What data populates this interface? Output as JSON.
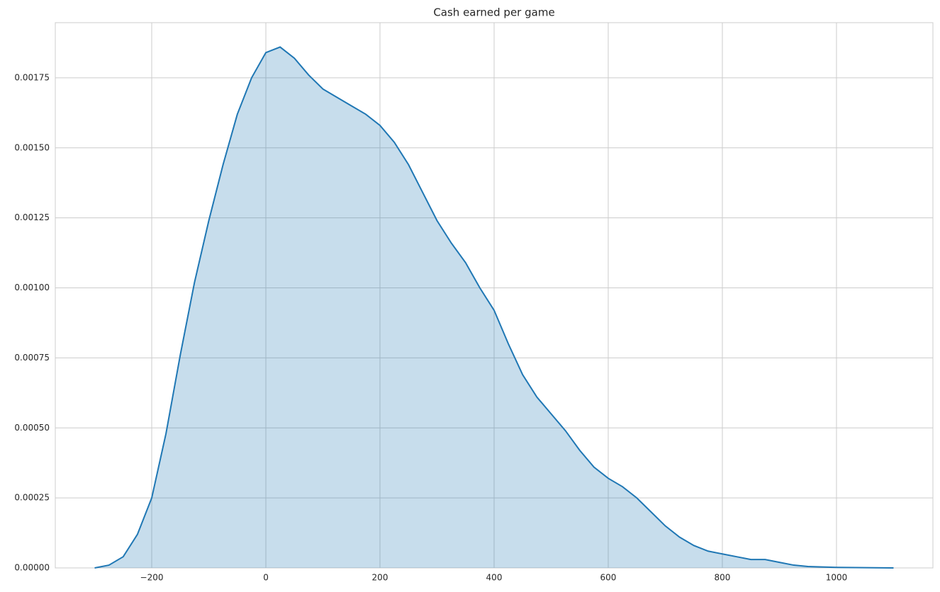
{
  "chart_data": {
    "type": "area",
    "title": "Cash earned per game",
    "x": [
      -300,
      -275,
      -250,
      -225,
      -200,
      -175,
      -150,
      -125,
      -100,
      -75,
      -50,
      -25,
      0,
      25,
      50,
      75,
      100,
      125,
      150,
      175,
      200,
      225,
      250,
      275,
      300,
      325,
      350,
      375,
      400,
      425,
      450,
      475,
      500,
      525,
      550,
      575,
      600,
      625,
      650,
      675,
      700,
      725,
      750,
      775,
      800,
      825,
      850,
      875,
      900,
      925,
      950,
      1000,
      1050,
      1100
    ],
    "series": [
      {
        "color": "#1f77b4",
        "values": [
          0,
          1e-05,
          4e-05,
          0.00012,
          0.00025,
          0.00048,
          0.00076,
          0.00102,
          0.00124,
          0.00144,
          0.00162,
          0.00175,
          0.00184,
          0.00186,
          0.00182,
          0.00176,
          0.00171,
          0.00168,
          0.00165,
          0.00162,
          0.00158,
          0.00152,
          0.00144,
          0.00134,
          0.00124,
          0.00116,
          0.00109,
          0.001,
          0.00092,
          0.0008,
          0.00069,
          0.00061,
          0.00055,
          0.00049,
          0.00042,
          0.00036,
          0.00032,
          0.00029,
          0.00025,
          0.0002,
          0.00015,
          0.00011,
          8e-05,
          6e-05,
          5e-05,
          4e-05,
          3e-05,
          3e-05,
          2e-05,
          1e-05,
          5e-06,
          2e-06,
          1e-06,
          0
        ]
      }
    ],
    "xlim": [
      -369,
      1169
    ],
    "ylim": [
      0,
      0.001947
    ],
    "xticks": [
      {
        "value": -200,
        "label": "−200"
      },
      0,
      200,
      400,
      600,
      800,
      1000
    ],
    "yticks": [
      {
        "value": 0,
        "label": "0.00000"
      },
      {
        "value": 0.00025,
        "label": "0.00025"
      },
      {
        "value": 0.0005,
        "label": "0.00050"
      },
      {
        "value": 0.00075,
        "label": "0.00075"
      },
      {
        "value": 0.001,
        "label": "0.00100"
      },
      {
        "value": 0.00125,
        "label": "0.00125"
      },
      {
        "value": 0.0015,
        "label": "0.00150"
      },
      {
        "value": 0.00175,
        "label": "0.00175"
      }
    ],
    "grid": true
  }
}
